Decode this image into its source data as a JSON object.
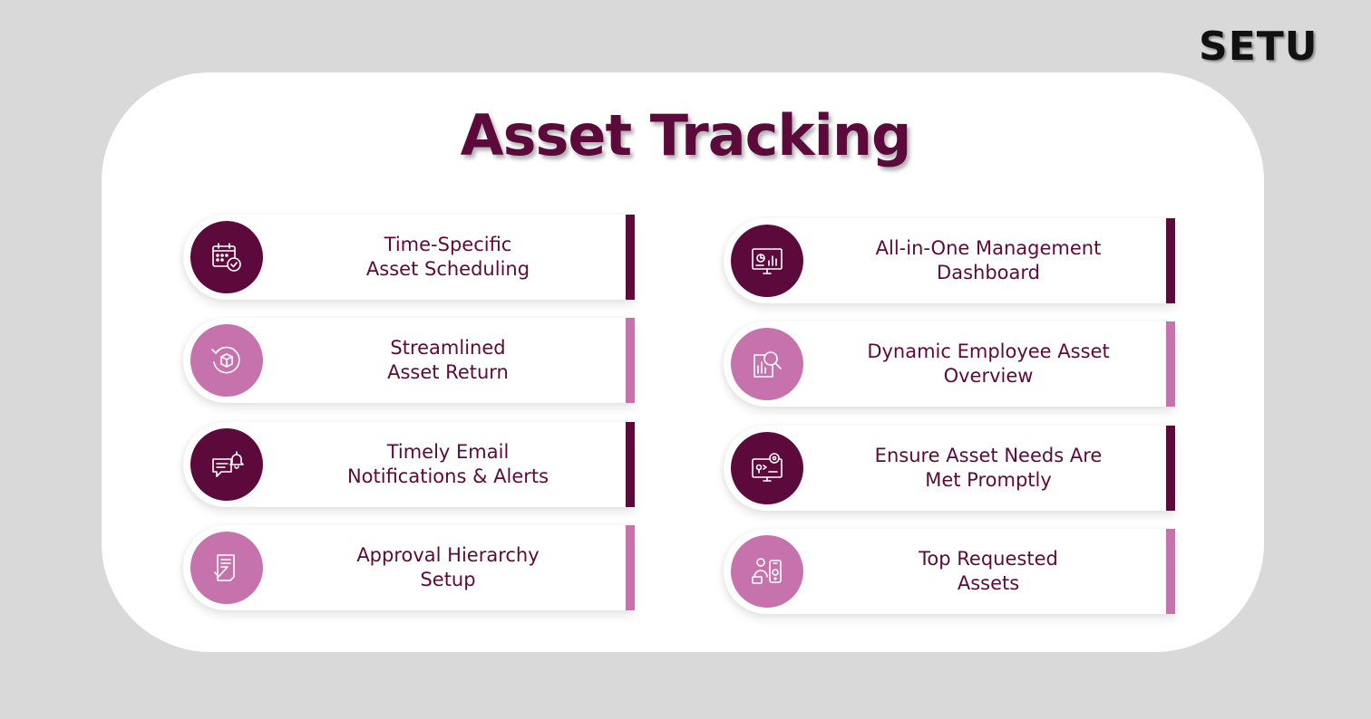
{
  "brand": {
    "name": "SETU"
  },
  "title": "Asset Tracking",
  "colors": {
    "primary": "#5c0a3b",
    "secondary": "#c572ad",
    "background": "#d9d9d9",
    "panel": "#ffffff"
  },
  "features": [
    {
      "line1": "Time-Specific",
      "line2": "Asset Scheduling",
      "icon": "calendar-check-icon",
      "tone": "dark"
    },
    {
      "line1": "Streamlined",
      "line2": "Asset Return",
      "icon": "box-return-icon",
      "tone": "light"
    },
    {
      "line1": "Timely Email",
      "line2": "Notifications & Alerts",
      "icon": "chat-bell-icon",
      "tone": "dark"
    },
    {
      "line1": "Approval Hierarchy",
      "line2": "Setup",
      "icon": "document-check-icon",
      "tone": "light"
    },
    {
      "line1": "All-in-One Management",
      "line2": "Dashboard",
      "icon": "dashboard-monitor-icon",
      "tone": "dark"
    },
    {
      "line1": "Dynamic Employee Asset",
      "line2": "Overview",
      "icon": "chart-magnifier-icon",
      "tone": "light"
    },
    {
      "line1": "Ensure Asset Needs Are",
      "line2": "Met Promptly",
      "icon": "monitor-settings-icon",
      "tone": "dark"
    },
    {
      "line1": "Top Requested",
      "line2": "Assets",
      "icon": "user-mobile-icon",
      "tone": "light"
    }
  ]
}
